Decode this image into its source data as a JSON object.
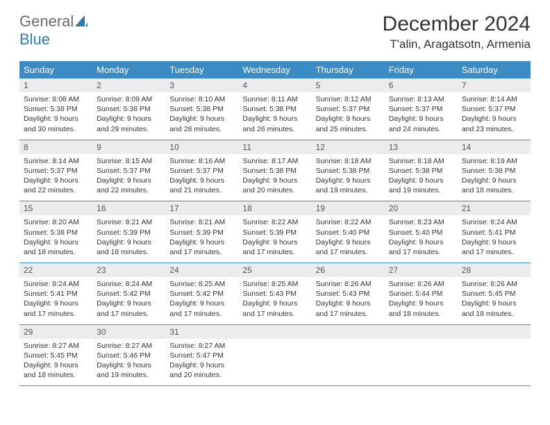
{
  "logo": {
    "general": "General",
    "blue": "Blue"
  },
  "title": "December 2024",
  "location": "T'alin, Aragatsotn, Armenia",
  "colors": {
    "header_bg": "#3b8bc4",
    "header_text": "#ffffff",
    "daynum_bg": "#ececec",
    "border": "#3b8bc4",
    "logo_gray": "#6b6b6b",
    "logo_blue": "#2a7ab8"
  },
  "weekdays": [
    "Sunday",
    "Monday",
    "Tuesday",
    "Wednesday",
    "Thursday",
    "Friday",
    "Saturday"
  ],
  "weeks": [
    [
      {
        "day": "1",
        "sunrise": "Sunrise: 8:08 AM",
        "sunset": "Sunset: 5:38 PM",
        "daylight": "Daylight: 9 hours and 30 minutes."
      },
      {
        "day": "2",
        "sunrise": "Sunrise: 8:09 AM",
        "sunset": "Sunset: 5:38 PM",
        "daylight": "Daylight: 9 hours and 29 minutes."
      },
      {
        "day": "3",
        "sunrise": "Sunrise: 8:10 AM",
        "sunset": "Sunset: 5:38 PM",
        "daylight": "Daylight: 9 hours and 28 minutes."
      },
      {
        "day": "4",
        "sunrise": "Sunrise: 8:11 AM",
        "sunset": "Sunset: 5:38 PM",
        "daylight": "Daylight: 9 hours and 26 minutes."
      },
      {
        "day": "5",
        "sunrise": "Sunrise: 8:12 AM",
        "sunset": "Sunset: 5:37 PM",
        "daylight": "Daylight: 9 hours and 25 minutes."
      },
      {
        "day": "6",
        "sunrise": "Sunrise: 8:13 AM",
        "sunset": "Sunset: 5:37 PM",
        "daylight": "Daylight: 9 hours and 24 minutes."
      },
      {
        "day": "7",
        "sunrise": "Sunrise: 8:14 AM",
        "sunset": "Sunset: 5:37 PM",
        "daylight": "Daylight: 9 hours and 23 minutes."
      }
    ],
    [
      {
        "day": "8",
        "sunrise": "Sunrise: 8:14 AM",
        "sunset": "Sunset: 5:37 PM",
        "daylight": "Daylight: 9 hours and 22 minutes."
      },
      {
        "day": "9",
        "sunrise": "Sunrise: 8:15 AM",
        "sunset": "Sunset: 5:37 PM",
        "daylight": "Daylight: 9 hours and 22 minutes."
      },
      {
        "day": "10",
        "sunrise": "Sunrise: 8:16 AM",
        "sunset": "Sunset: 5:37 PM",
        "daylight": "Daylight: 9 hours and 21 minutes."
      },
      {
        "day": "11",
        "sunrise": "Sunrise: 8:17 AM",
        "sunset": "Sunset: 5:38 PM",
        "daylight": "Daylight: 9 hours and 20 minutes."
      },
      {
        "day": "12",
        "sunrise": "Sunrise: 8:18 AM",
        "sunset": "Sunset: 5:38 PM",
        "daylight": "Daylight: 9 hours and 19 minutes."
      },
      {
        "day": "13",
        "sunrise": "Sunrise: 8:18 AM",
        "sunset": "Sunset: 5:38 PM",
        "daylight": "Daylight: 9 hours and 19 minutes."
      },
      {
        "day": "14",
        "sunrise": "Sunrise: 8:19 AM",
        "sunset": "Sunset: 5:38 PM",
        "daylight": "Daylight: 9 hours and 18 minutes."
      }
    ],
    [
      {
        "day": "15",
        "sunrise": "Sunrise: 8:20 AM",
        "sunset": "Sunset: 5:38 PM",
        "daylight": "Daylight: 9 hours and 18 minutes."
      },
      {
        "day": "16",
        "sunrise": "Sunrise: 8:21 AM",
        "sunset": "Sunset: 5:39 PM",
        "daylight": "Daylight: 9 hours and 18 minutes."
      },
      {
        "day": "17",
        "sunrise": "Sunrise: 8:21 AM",
        "sunset": "Sunset: 5:39 PM",
        "daylight": "Daylight: 9 hours and 17 minutes."
      },
      {
        "day": "18",
        "sunrise": "Sunrise: 8:22 AM",
        "sunset": "Sunset: 5:39 PM",
        "daylight": "Daylight: 9 hours and 17 minutes."
      },
      {
        "day": "19",
        "sunrise": "Sunrise: 8:22 AM",
        "sunset": "Sunset: 5:40 PM",
        "daylight": "Daylight: 9 hours and 17 minutes."
      },
      {
        "day": "20",
        "sunrise": "Sunrise: 8:23 AM",
        "sunset": "Sunset: 5:40 PM",
        "daylight": "Daylight: 9 hours and 17 minutes."
      },
      {
        "day": "21",
        "sunrise": "Sunrise: 8:24 AM",
        "sunset": "Sunset: 5:41 PM",
        "daylight": "Daylight: 9 hours and 17 minutes."
      }
    ],
    [
      {
        "day": "22",
        "sunrise": "Sunrise: 8:24 AM",
        "sunset": "Sunset: 5:41 PM",
        "daylight": "Daylight: 9 hours and 17 minutes."
      },
      {
        "day": "23",
        "sunrise": "Sunrise: 8:24 AM",
        "sunset": "Sunset: 5:42 PM",
        "daylight": "Daylight: 9 hours and 17 minutes."
      },
      {
        "day": "24",
        "sunrise": "Sunrise: 8:25 AM",
        "sunset": "Sunset: 5:42 PM",
        "daylight": "Daylight: 9 hours and 17 minutes."
      },
      {
        "day": "25",
        "sunrise": "Sunrise: 8:25 AM",
        "sunset": "Sunset: 5:43 PM",
        "daylight": "Daylight: 9 hours and 17 minutes."
      },
      {
        "day": "26",
        "sunrise": "Sunrise: 8:26 AM",
        "sunset": "Sunset: 5:43 PM",
        "daylight": "Daylight: 9 hours and 17 minutes."
      },
      {
        "day": "27",
        "sunrise": "Sunrise: 8:26 AM",
        "sunset": "Sunset: 5:44 PM",
        "daylight": "Daylight: 9 hours and 18 minutes."
      },
      {
        "day": "28",
        "sunrise": "Sunrise: 8:26 AM",
        "sunset": "Sunset: 5:45 PM",
        "daylight": "Daylight: 9 hours and 18 minutes."
      }
    ],
    [
      {
        "day": "29",
        "sunrise": "Sunrise: 8:27 AM",
        "sunset": "Sunset: 5:45 PM",
        "daylight": "Daylight: 9 hours and 18 minutes."
      },
      {
        "day": "30",
        "sunrise": "Sunrise: 8:27 AM",
        "sunset": "Sunset: 5:46 PM",
        "daylight": "Daylight: 9 hours and 19 minutes."
      },
      {
        "day": "31",
        "sunrise": "Sunrise: 8:27 AM",
        "sunset": "Sunset: 5:47 PM",
        "daylight": "Daylight: 9 hours and 20 minutes."
      },
      null,
      null,
      null,
      null
    ]
  ]
}
